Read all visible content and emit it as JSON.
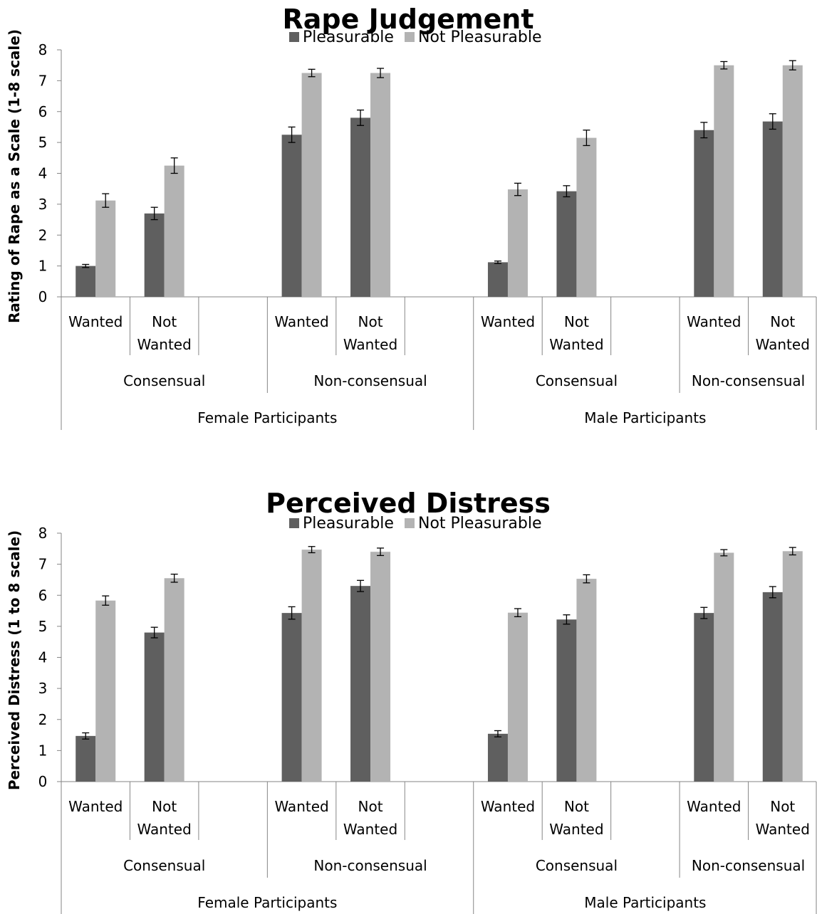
{
  "chart_data": [
    {
      "type": "bar",
      "title": "Rape Judgement",
      "ylabel": "Rating of Rape as a Scale (1-8 scale)",
      "ylim": [
        0,
        8
      ],
      "yticks": [
        0,
        1,
        2,
        3,
        4,
        5,
        6,
        7,
        8
      ],
      "legend_position": "top",
      "categories": [
        {
          "levels": [
            "Wanted",
            "Consensual",
            "Female Participants"
          ]
        },
        {
          "levels": [
            "Not Wanted",
            "Consensual",
            "Female Participants"
          ]
        },
        {
          "levels": [
            "Wanted",
            "Non-consensual",
            "Female Participants"
          ]
        },
        {
          "levels": [
            "Not Wanted",
            "Non-consensual",
            "Female Participants"
          ]
        },
        {
          "levels": [
            "Wanted",
            "Consensual",
            "Male Participants"
          ]
        },
        {
          "levels": [
            "Not Wanted",
            "Consensual",
            "Male Participants"
          ]
        },
        {
          "levels": [
            "Wanted",
            "Non-consensual",
            "Male Participants"
          ]
        },
        {
          "levels": [
            "Not Wanted",
            "Non-consensual",
            "Male Participants"
          ]
        }
      ],
      "series": [
        {
          "name": "Pleasurable",
          "color": "#5f5f5f",
          "values": [
            1.0,
            2.7,
            5.25,
            5.8,
            1.12,
            3.42,
            5.4,
            5.68
          ],
          "errors": [
            0.05,
            0.2,
            0.25,
            0.25,
            0.04,
            0.18,
            0.25,
            0.25
          ]
        },
        {
          "name": "Not Pleasurable",
          "color": "#b3b3b3",
          "values": [
            3.12,
            4.25,
            7.25,
            7.25,
            3.48,
            5.15,
            7.5,
            7.5
          ],
          "errors": [
            0.22,
            0.25,
            0.12,
            0.15,
            0.2,
            0.25,
            0.12,
            0.15
          ]
        }
      ]
    },
    {
      "type": "bar",
      "title": "Perceived Distress",
      "ylabel": "Perceived Distress (1 to 8 scale)",
      "ylim": [
        0,
        8
      ],
      "yticks": [
        0,
        1,
        2,
        3,
        4,
        5,
        6,
        7,
        8
      ],
      "legend_position": "top",
      "categories": [
        {
          "levels": [
            "Wanted",
            "Consensual",
            "Female Participants"
          ]
        },
        {
          "levels": [
            "Not Wanted",
            "Consensual",
            "Female Participants"
          ]
        },
        {
          "levels": [
            "Wanted",
            "Non-consensual",
            "Female Participants"
          ]
        },
        {
          "levels": [
            "Not Wanted",
            "Non-consensual",
            "Female Participants"
          ]
        },
        {
          "levels": [
            "Wanted",
            "Consensual",
            "Male Participants"
          ]
        },
        {
          "levels": [
            "Not Wanted",
            "Consensual",
            "Male Participants"
          ]
        },
        {
          "levels": [
            "Wanted",
            "Non-consensual",
            "Male Participants"
          ]
        },
        {
          "levels": [
            "Not Wanted",
            "Non-consensual",
            "Male Participants"
          ]
        }
      ],
      "series": [
        {
          "name": "Pleasurable",
          "color": "#5f5f5f",
          "values": [
            1.47,
            4.8,
            5.43,
            6.3,
            1.54,
            5.22,
            5.43,
            6.1
          ],
          "errors": [
            0.1,
            0.17,
            0.2,
            0.18,
            0.1,
            0.15,
            0.18,
            0.18
          ]
        },
        {
          "name": "Not Pleasurable",
          "color": "#b3b3b3",
          "values": [
            5.83,
            6.55,
            7.47,
            7.4,
            5.44,
            6.53,
            7.37,
            7.42
          ],
          "errors": [
            0.15,
            0.13,
            0.1,
            0.12,
            0.13,
            0.13,
            0.1,
            0.12
          ]
        }
      ]
    }
  ]
}
